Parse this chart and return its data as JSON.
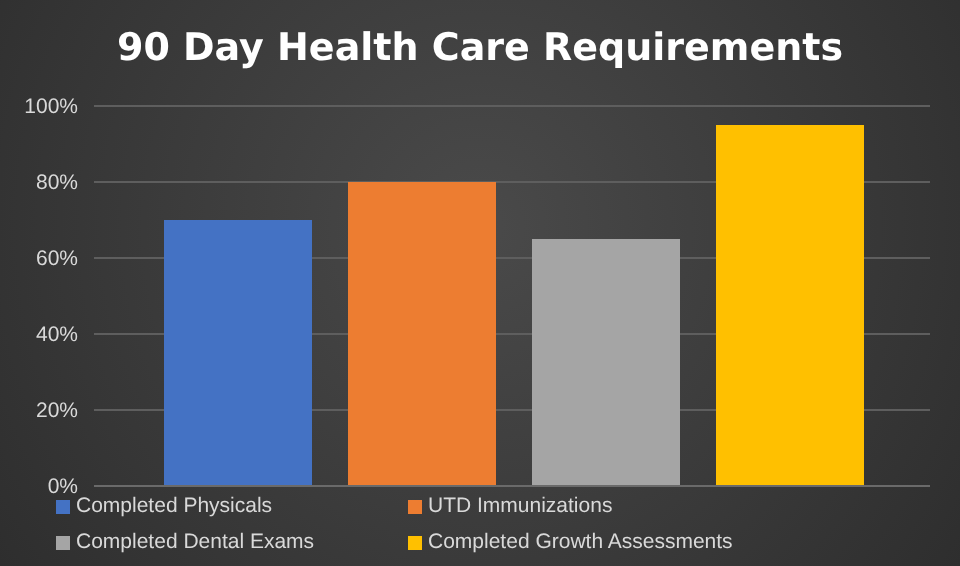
{
  "chart_data": {
    "type": "bar",
    "title": "90 Day Health Care Requirements",
    "categories": [
      null
    ],
    "series": [
      {
        "name": "Completed Physicals",
        "color": "#4472c4",
        "values": [
          70
        ]
      },
      {
        "name": "UTD Immunizations",
        "color": "#ed7d31",
        "values": [
          80
        ]
      },
      {
        "name": "Completed Dental Exams",
        "color": "#a5a5a5",
        "values": [
          65
        ]
      },
      {
        "name": "Completed Growth Assessments",
        "color": "#ffc000",
        "values": [
          95
        ]
      }
    ],
    "ylim": [
      0,
      100
    ],
    "yticks": [
      {
        "value": 0,
        "label": "0%"
      },
      {
        "value": 20,
        "label": "20%"
      },
      {
        "value": 40,
        "label": "40%"
      },
      {
        "value": 60,
        "label": "60%"
      },
      {
        "value": 80,
        "label": "80%"
      },
      {
        "value": 100,
        "label": "100%"
      }
    ],
    "grid": "y",
    "legend": "bottom"
  }
}
